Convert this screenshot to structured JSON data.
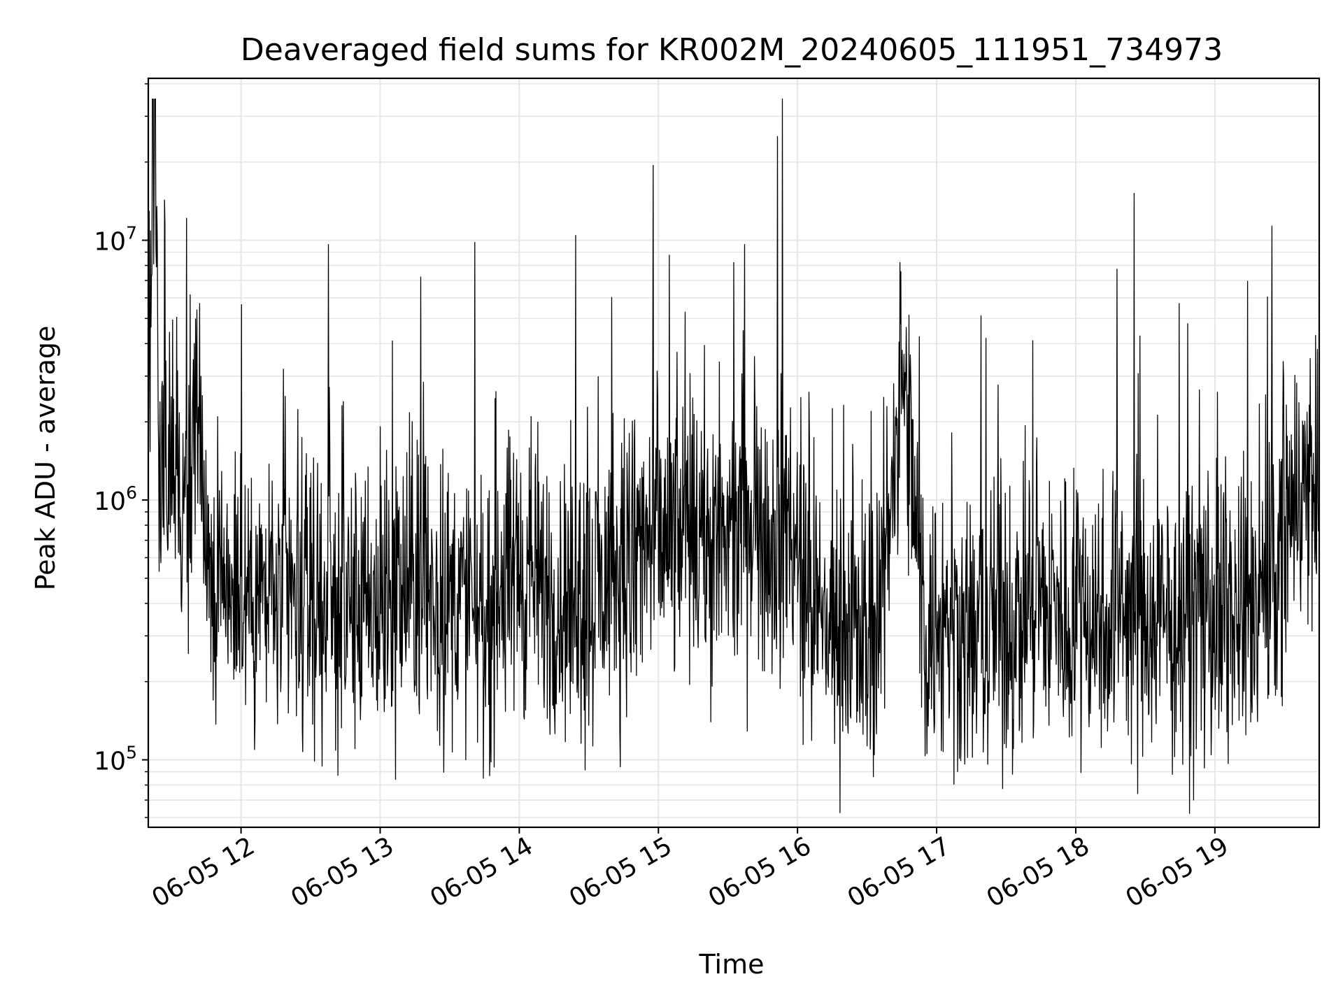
{
  "chart_data": {
    "type": "line",
    "title": "Deaveraged field sums for KR002M_20240605_111951_734973",
    "xlabel": "Time",
    "ylabel": "Peak ADU - average",
    "x_scale": "time",
    "y_scale": "log",
    "xlim": [
      "2024-06-05T11:20:00",
      "2024-06-05T19:45:00"
    ],
    "ylim": [
      55000,
      42000000
    ],
    "grid": true,
    "legend": false,
    "line_color": "#000000",
    "grid_color": "#e6e6e6",
    "x_ticks": [
      {
        "time": "2024-06-05T12:00:00",
        "label": "06-05 12"
      },
      {
        "time": "2024-06-05T13:00:00",
        "label": "06-05 13"
      },
      {
        "time": "2024-06-05T14:00:00",
        "label": "06-05 14"
      },
      {
        "time": "2024-06-05T15:00:00",
        "label": "06-05 15"
      },
      {
        "time": "2024-06-05T16:00:00",
        "label": "06-05 16"
      },
      {
        "time": "2024-06-05T17:00:00",
        "label": "06-05 17"
      },
      {
        "time": "2024-06-05T18:00:00",
        "label": "06-05 18"
      },
      {
        "time": "2024-06-05T19:00:00",
        "label": "06-05 19"
      }
    ],
    "y_ticks": [
      {
        "value": 100000,
        "base": "10",
        "exp": "5"
      },
      {
        "value": 1000000,
        "base": "10",
        "exp": "6"
      },
      {
        "value": 10000000,
        "base": "10",
        "exp": "7"
      }
    ],
    "series": [
      {
        "x": [
          "2024-06-05T11:20:00",
          "2024-06-05T11:23:00",
          "2024-06-05T11:25:00",
          "2024-06-05T11:30:00",
          "2024-06-05T11:35:00",
          "2024-06-05T11:40:00",
          "2024-06-05T11:45:00",
          "2024-06-05T11:50:00",
          "2024-06-05T11:55:00",
          "2024-06-05T12:05:00",
          "2024-06-05T12:15:00",
          "2024-06-05T12:25:00",
          "2024-06-05T12:35:00",
          "2024-06-05T12:45:00",
          "2024-06-05T12:55:00",
          "2024-06-05T13:05:00",
          "2024-06-05T13:15:00",
          "2024-06-05T13:25:00",
          "2024-06-05T13:35:00",
          "2024-06-05T13:45:00",
          "2024-06-05T13:55:00",
          "2024-06-05T14:05:00",
          "2024-06-05T14:15:00",
          "2024-06-05T14:25:00",
          "2024-06-05T14:35:00",
          "2024-06-05T14:45:00",
          "2024-06-05T14:55:00",
          "2024-06-05T15:05:00",
          "2024-06-05T15:15:00",
          "2024-06-05T15:25:00",
          "2024-06-05T15:35:00",
          "2024-06-05T15:45:00",
          "2024-06-05T15:55:00",
          "2024-06-05T16:05:00",
          "2024-06-05T16:15:00",
          "2024-06-05T16:25:00",
          "2024-06-05T16:35:00",
          "2024-06-05T16:45:00",
          "2024-06-05T16:55:00",
          "2024-06-05T17:05:00",
          "2024-06-05T17:15:00",
          "2024-06-05T17:25:00",
          "2024-06-05T17:35:00",
          "2024-06-05T17:45:00",
          "2024-06-05T17:55:00",
          "2024-06-05T18:05:00",
          "2024-06-05T18:15:00",
          "2024-06-05T18:25:00",
          "2024-06-05T18:35:00",
          "2024-06-05T18:45:00",
          "2024-06-05T18:55:00",
          "2024-06-05T19:05:00",
          "2024-06-05T19:15:00",
          "2024-06-05T19:25:00",
          "2024-06-05T19:35:00",
          "2024-06-05T19:45:00"
        ],
        "values": [
          3200000,
          30000000,
          1200000,
          1500000,
          900000,
          2500000,
          700000,
          450000,
          600000,
          400000,
          450000,
          350000,
          450000,
          400000,
          350000,
          400000,
          500000,
          380000,
          420000,
          360000,
          450000,
          500000,
          420000,
          400000,
          450000,
          550000,
          650000,
          700000,
          750000,
          650000,
          700000,
          750000,
          800000,
          400000,
          330000,
          300000,
          320000,
          3000000,
          320000,
          350000,
          300000,
          320000,
          350000,
          400000,
          350000,
          380000,
          360000,
          350000,
          330000,
          320000,
          340000,
          350000,
          360000,
          500000,
          1100000,
          1150000
        ]
      }
    ]
  }
}
